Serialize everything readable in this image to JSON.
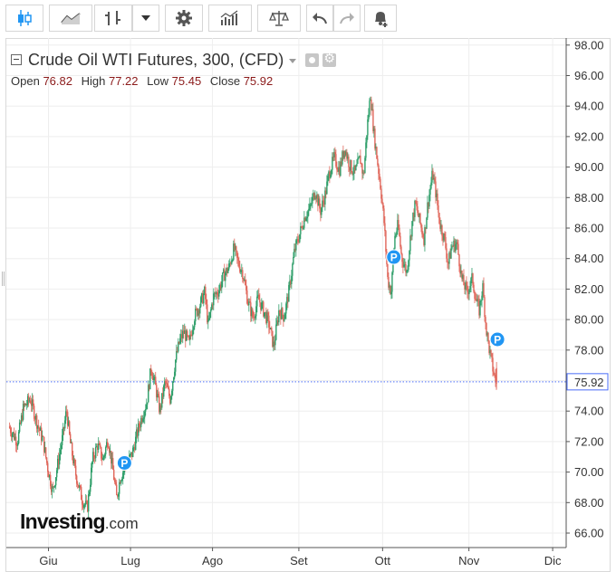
{
  "toolbar": {
    "buttons": [
      {
        "icon": "candlestick-icon"
      },
      {
        "icon": "area-chart-icon"
      },
      {
        "icon": "bar-ohlc-icon"
      },
      {
        "icon": "chevron-down-icon"
      },
      {
        "icon": "gear-icon"
      },
      {
        "icon": "indicators-icon"
      },
      {
        "icon": "compare-scale-icon"
      },
      {
        "icon": "undo-icon"
      },
      {
        "icon": "redo-icon"
      },
      {
        "icon": "alert-bell-icon"
      }
    ]
  },
  "legend": {
    "title": "Crude Oil WTI Futures, 300, (CFD)",
    "open_label": "Open",
    "open_value": "76.82",
    "high_label": "High",
    "high_value": "77.22",
    "low_label": "Low",
    "low_value": "75.45",
    "close_label": "Close",
    "close_value": "75.92"
  },
  "logo": {
    "brand": "Investing",
    "tld": ".com"
  },
  "colors": {
    "up": "#2e9e69",
    "down": "#e0665a",
    "marker": "#2196f3",
    "price_line": "#4a6cf7",
    "axis_text": "#333333"
  },
  "chart_data": {
    "type": "line",
    "title": "Crude Oil WTI Futures, 300, (CFD)",
    "xlabel": "",
    "ylabel": "",
    "ylim": [
      65,
      99
    ],
    "y_ticks": [
      "66.00",
      "68.00",
      "70.00",
      "72.00",
      "74.00",
      "76.00",
      "78.00",
      "80.00",
      "82.00",
      "84.00",
      "86.00",
      "88.00",
      "90.00",
      "92.00",
      "94.00",
      "96.00",
      "98.00"
    ],
    "x_ticks": [
      {
        "label": "Giu",
        "t": 0.1
      },
      {
        "label": "Lug",
        "t": 1.05
      },
      {
        "label": "Ago",
        "t": 2.0
      },
      {
        "label": "Set",
        "t": 3.0
      },
      {
        "label": "Ott",
        "t": 3.97
      },
      {
        "label": "Nov",
        "t": 4.97
      },
      {
        "label": "Dic",
        "t": 5.94
      }
    ],
    "x_range": [
      -0.35,
      6.2
    ],
    "current_price": "75.92",
    "current_value": 75.92,
    "series": [
      {
        "points": [
          [
            -0.35,
            73.0
          ],
          [
            -0.25,
            72.0
          ],
          [
            -0.18,
            74.2
          ],
          [
            -0.1,
            74.8
          ],
          [
            -0.02,
            73.2
          ],
          [
            0.05,
            72.0
          ],
          [
            0.1,
            70.3
          ],
          [
            0.16,
            68.7
          ],
          [
            0.22,
            70.6
          ],
          [
            0.28,
            72.5
          ],
          [
            0.32,
            74.1
          ],
          [
            0.36,
            72.0
          ],
          [
            0.42,
            70.0
          ],
          [
            0.5,
            68.2
          ],
          [
            0.56,
            67.6
          ],
          [
            0.62,
            70.8
          ],
          [
            0.68,
            71.8
          ],
          [
            0.74,
            70.8
          ],
          [
            0.8,
            72.2
          ],
          [
            0.86,
            70.0
          ],
          [
            0.9,
            68.3
          ],
          [
            0.94,
            69.6
          ],
          [
            1.0,
            70.4
          ],
          [
            1.08,
            71.2
          ],
          [
            1.14,
            72.6
          ],
          [
            1.2,
            73.8
          ],
          [
            1.25,
            74.6
          ],
          [
            1.3,
            76.9
          ],
          [
            1.35,
            75.6
          ],
          [
            1.4,
            74.0
          ],
          [
            1.46,
            75.9
          ],
          [
            1.52,
            74.8
          ],
          [
            1.58,
            77.3
          ],
          [
            1.63,
            78.6
          ],
          [
            1.68,
            79.2
          ],
          [
            1.74,
            78.4
          ],
          [
            1.8,
            80.2
          ],
          [
            1.86,
            80.9
          ],
          [
            1.92,
            81.8
          ],
          [
            1.96,
            79.6
          ],
          [
            2.02,
            81.5
          ],
          [
            2.08,
            81.9
          ],
          [
            2.14,
            82.9
          ],
          [
            2.2,
            83.4
          ],
          [
            2.26,
            84.7
          ],
          [
            2.3,
            83.8
          ],
          [
            2.36,
            83.1
          ],
          [
            2.42,
            81.2
          ],
          [
            2.48,
            80.1
          ],
          [
            2.54,
            81.4
          ],
          [
            2.6,
            80.6
          ],
          [
            2.66,
            79.8
          ],
          [
            2.72,
            78.2
          ],
          [
            2.78,
            80.6
          ],
          [
            2.84,
            80.2
          ],
          [
            2.9,
            82.0
          ],
          [
            2.96,
            84.5
          ],
          [
            3.02,
            85.6
          ],
          [
            3.08,
            86.8
          ],
          [
            3.14,
            87.3
          ],
          [
            3.2,
            88.5
          ],
          [
            3.26,
            87.1
          ],
          [
            3.32,
            88.3
          ],
          [
            3.36,
            89.6
          ],
          [
            3.42,
            90.6
          ],
          [
            3.48,
            89.8
          ],
          [
            3.54,
            91.3
          ],
          [
            3.6,
            90.1
          ],
          [
            3.66,
            89.6
          ],
          [
            3.72,
            90.6
          ],
          [
            3.76,
            89.3
          ],
          [
            3.8,
            92.5
          ],
          [
            3.84,
            94.8
          ],
          [
            3.88,
            92.2
          ],
          [
            3.92,
            90.4
          ],
          [
            3.96,
            88.6
          ],
          [
            4.0,
            86.2
          ],
          [
            4.04,
            82.6
          ],
          [
            4.08,
            81.8
          ],
          [
            4.12,
            85.4
          ],
          [
            4.16,
            86.2
          ],
          [
            4.2,
            84.1
          ],
          [
            4.26,
            83.1
          ],
          [
            4.32,
            86.3
          ],
          [
            4.36,
            87.6
          ],
          [
            4.42,
            86.2
          ],
          [
            4.46,
            85.3
          ],
          [
            4.5,
            87.4
          ],
          [
            4.56,
            89.6
          ],
          [
            4.6,
            88.2
          ],
          [
            4.64,
            86.4
          ],
          [
            4.7,
            85.2
          ],
          [
            4.74,
            83.6
          ],
          [
            4.78,
            84.8
          ],
          [
            4.84,
            85.0
          ],
          [
            4.9,
            82.6
          ],
          [
            4.96,
            81.8
          ],
          [
            5.02,
            82.7
          ],
          [
            5.06,
            81.3
          ],
          [
            5.1,
            80.6
          ],
          [
            5.14,
            82.2
          ],
          [
            5.18,
            79.4
          ],
          [
            5.22,
            77.9
          ],
          [
            5.26,
            76.7
          ],
          [
            5.29,
            75.92
          ]
        ]
      }
    ],
    "markers": [
      {
        "label": "P",
        "x": 0.98,
        "y": 70.6
      },
      {
        "label": "P",
        "x": 4.1,
        "y": 84.1
      },
      {
        "label": "P",
        "x": 5.3,
        "y": 78.7
      }
    ]
  }
}
